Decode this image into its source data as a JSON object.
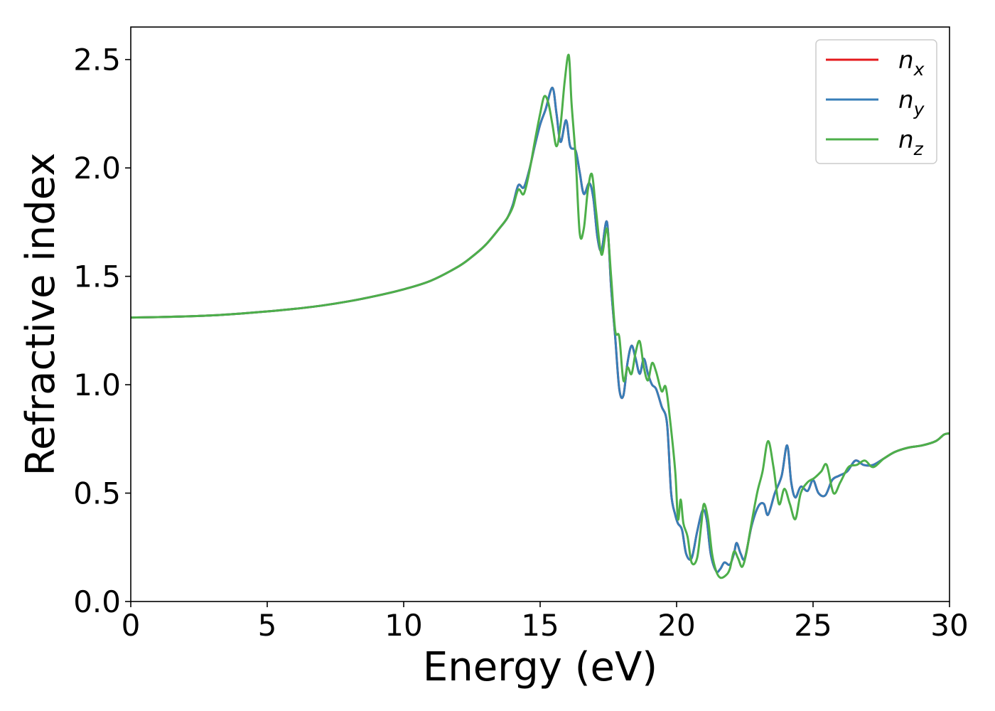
{
  "chart_data": {
    "type": "line",
    "title": "",
    "xlabel": "Energy (eV)",
    "ylabel": "Refractive index",
    "xlim": [
      0,
      30
    ],
    "ylim": [
      0,
      2.65
    ],
    "xticks": [
      "0",
      "5",
      "10",
      "15",
      "20",
      "25",
      "30"
    ],
    "yticks": [
      "0.0",
      "0.5",
      "1.0",
      "1.5",
      "2.0",
      "2.5"
    ],
    "grid": false,
    "legend_position": "top-right",
    "series": [
      {
        "name": "n",
        "subscript": "x",
        "color": "#e41a1c",
        "x": [
          0,
          1,
          2,
          3,
          4,
          5,
          6,
          7,
          8,
          9,
          10,
          11,
          12,
          12.5,
          13,
          13.5,
          13.8,
          14,
          14.2,
          14.4,
          14.6,
          14.8,
          15,
          15.2,
          15.45,
          15.6,
          15.75,
          15.95,
          16.1,
          16.3,
          16.45,
          16.6,
          16.8,
          16.95,
          17.1,
          17.25,
          17.45,
          17.6,
          17.75,
          17.9,
          18.05,
          18.2,
          18.35,
          18.5,
          18.65,
          18.8,
          18.95,
          19.1,
          19.25,
          19.45,
          19.65,
          19.8,
          19.95,
          20.05,
          20.2,
          20.35,
          20.55,
          20.75,
          20.95,
          21.1,
          21.25,
          21.45,
          21.6,
          21.75,
          21.95,
          22.1,
          22.2,
          22.35,
          22.5,
          22.75,
          23,
          23.2,
          23.35,
          23.6,
          23.85,
          24.05,
          24.2,
          24.35,
          24.55,
          24.8,
          25,
          25.2,
          25.45,
          25.7,
          25.95,
          26.25,
          26.55,
          26.85,
          27.2,
          27.6,
          28,
          28.5,
          29,
          29.5,
          29.8,
          30
        ],
        "y": [
          1.31,
          1.312,
          1.315,
          1.32,
          1.328,
          1.338,
          1.35,
          1.365,
          1.385,
          1.41,
          1.44,
          1.48,
          1.545,
          1.59,
          1.645,
          1.72,
          1.77,
          1.83,
          1.92,
          1.91,
          1.99,
          2.1,
          2.2,
          2.27,
          2.37,
          2.25,
          2.12,
          2.22,
          2.1,
          2.08,
          1.98,
          1.88,
          1.93,
          1.86,
          1.68,
          1.62,
          1.75,
          1.45,
          1.22,
          0.98,
          0.95,
          1.1,
          1.18,
          1.12,
          1.05,
          1.12,
          1.05,
          1.0,
          0.98,
          0.9,
          0.82,
          0.5,
          0.4,
          0.36,
          0.33,
          0.22,
          0.2,
          0.32,
          0.42,
          0.38,
          0.22,
          0.14,
          0.15,
          0.18,
          0.17,
          0.22,
          0.27,
          0.22,
          0.2,
          0.35,
          0.44,
          0.45,
          0.4,
          0.5,
          0.58,
          0.72,
          0.55,
          0.48,
          0.53,
          0.51,
          0.56,
          0.5,
          0.49,
          0.56,
          0.58,
          0.6,
          0.65,
          0.63,
          0.63,
          0.66,
          0.69,
          0.71,
          0.72,
          0.74,
          0.77,
          0.775
        ]
      },
      {
        "name": "n",
        "subscript": "y",
        "color": "#377eb8",
        "x": [
          0,
          1,
          2,
          3,
          4,
          5,
          6,
          7,
          8,
          9,
          10,
          11,
          12,
          12.5,
          13,
          13.5,
          13.8,
          14,
          14.2,
          14.4,
          14.6,
          14.8,
          15,
          15.2,
          15.45,
          15.6,
          15.75,
          15.95,
          16.1,
          16.3,
          16.45,
          16.6,
          16.8,
          16.95,
          17.1,
          17.25,
          17.45,
          17.6,
          17.75,
          17.9,
          18.05,
          18.2,
          18.35,
          18.5,
          18.65,
          18.8,
          18.95,
          19.1,
          19.25,
          19.45,
          19.65,
          19.8,
          19.95,
          20.05,
          20.2,
          20.35,
          20.55,
          20.75,
          20.95,
          21.1,
          21.25,
          21.45,
          21.6,
          21.75,
          21.95,
          22.1,
          22.2,
          22.35,
          22.5,
          22.75,
          23,
          23.2,
          23.35,
          23.6,
          23.85,
          24.05,
          24.2,
          24.35,
          24.55,
          24.8,
          25,
          25.2,
          25.45,
          25.7,
          25.95,
          26.25,
          26.55,
          26.85,
          27.2,
          27.6,
          28,
          28.5,
          29,
          29.5,
          29.8,
          30
        ],
        "y": [
          1.31,
          1.312,
          1.315,
          1.32,
          1.328,
          1.338,
          1.35,
          1.365,
          1.385,
          1.41,
          1.44,
          1.48,
          1.545,
          1.59,
          1.645,
          1.72,
          1.77,
          1.83,
          1.92,
          1.91,
          1.99,
          2.1,
          2.2,
          2.27,
          2.37,
          2.25,
          2.12,
          2.22,
          2.1,
          2.08,
          1.98,
          1.88,
          1.93,
          1.86,
          1.68,
          1.62,
          1.75,
          1.45,
          1.22,
          0.98,
          0.95,
          1.1,
          1.18,
          1.12,
          1.05,
          1.12,
          1.05,
          1.0,
          0.98,
          0.9,
          0.82,
          0.5,
          0.4,
          0.36,
          0.33,
          0.22,
          0.2,
          0.32,
          0.42,
          0.38,
          0.22,
          0.14,
          0.15,
          0.18,
          0.17,
          0.22,
          0.27,
          0.22,
          0.2,
          0.35,
          0.44,
          0.45,
          0.4,
          0.5,
          0.58,
          0.72,
          0.55,
          0.48,
          0.53,
          0.51,
          0.56,
          0.5,
          0.49,
          0.56,
          0.58,
          0.6,
          0.65,
          0.63,
          0.63,
          0.66,
          0.69,
          0.71,
          0.72,
          0.74,
          0.77,
          0.775
        ]
      },
      {
        "name": "n",
        "subscript": "z",
        "color": "#4daf4a",
        "x": [
          0,
          1,
          2,
          3,
          4,
          5,
          6,
          7,
          8,
          9,
          10,
          11,
          12,
          12.5,
          13,
          13.5,
          13.8,
          14,
          14.2,
          14.4,
          14.6,
          14.8,
          15,
          15.15,
          15.3,
          15.45,
          15.6,
          15.75,
          15.9,
          16.05,
          16.15,
          16.3,
          16.45,
          16.6,
          16.75,
          16.9,
          17.05,
          17.25,
          17.45,
          17.6,
          17.75,
          17.9,
          18.05,
          18.2,
          18.35,
          18.5,
          18.65,
          18.8,
          18.95,
          19.1,
          19.25,
          19.45,
          19.6,
          19.75,
          19.95,
          20.05,
          20.15,
          20.25,
          20.4,
          20.55,
          20.75,
          20.9,
          21,
          21.15,
          21.3,
          21.45,
          21.6,
          21.8,
          21.95,
          22.1,
          22.25,
          22.4,
          22.55,
          22.7,
          22.95,
          23.15,
          23.35,
          23.55,
          23.75,
          23.95,
          24.15,
          24.35,
          24.55,
          24.8,
          25.05,
          25.3,
          25.5,
          25.75,
          26,
          26.3,
          26.6,
          26.9,
          27.2,
          27.6,
          28,
          28.5,
          29,
          29.5,
          29.8,
          30
        ],
        "y": [
          1.31,
          1.312,
          1.315,
          1.32,
          1.328,
          1.338,
          1.35,
          1.365,
          1.385,
          1.41,
          1.44,
          1.48,
          1.545,
          1.59,
          1.645,
          1.72,
          1.77,
          1.82,
          1.9,
          1.88,
          1.98,
          2.12,
          2.25,
          2.33,
          2.3,
          2.2,
          2.1,
          2.2,
          2.4,
          2.52,
          2.3,
          2.05,
          1.7,
          1.72,
          1.9,
          1.97,
          1.8,
          1.6,
          1.72,
          1.5,
          1.25,
          1.22,
          1.02,
          1.08,
          1.05,
          1.15,
          1.2,
          1.08,
          1.02,
          1.1,
          1.06,
          0.97,
          0.99,
          0.85,
          0.6,
          0.38,
          0.47,
          0.36,
          0.3,
          0.18,
          0.2,
          0.35,
          0.45,
          0.38,
          0.22,
          0.14,
          0.11,
          0.12,
          0.15,
          0.23,
          0.2,
          0.16,
          0.22,
          0.33,
          0.5,
          0.6,
          0.74,
          0.62,
          0.45,
          0.52,
          0.45,
          0.38,
          0.5,
          0.55,
          0.57,
          0.6,
          0.63,
          0.5,
          0.55,
          0.62,
          0.63,
          0.65,
          0.62,
          0.66,
          0.69,
          0.71,
          0.72,
          0.74,
          0.77,
          0.775
        ]
      }
    ]
  }
}
